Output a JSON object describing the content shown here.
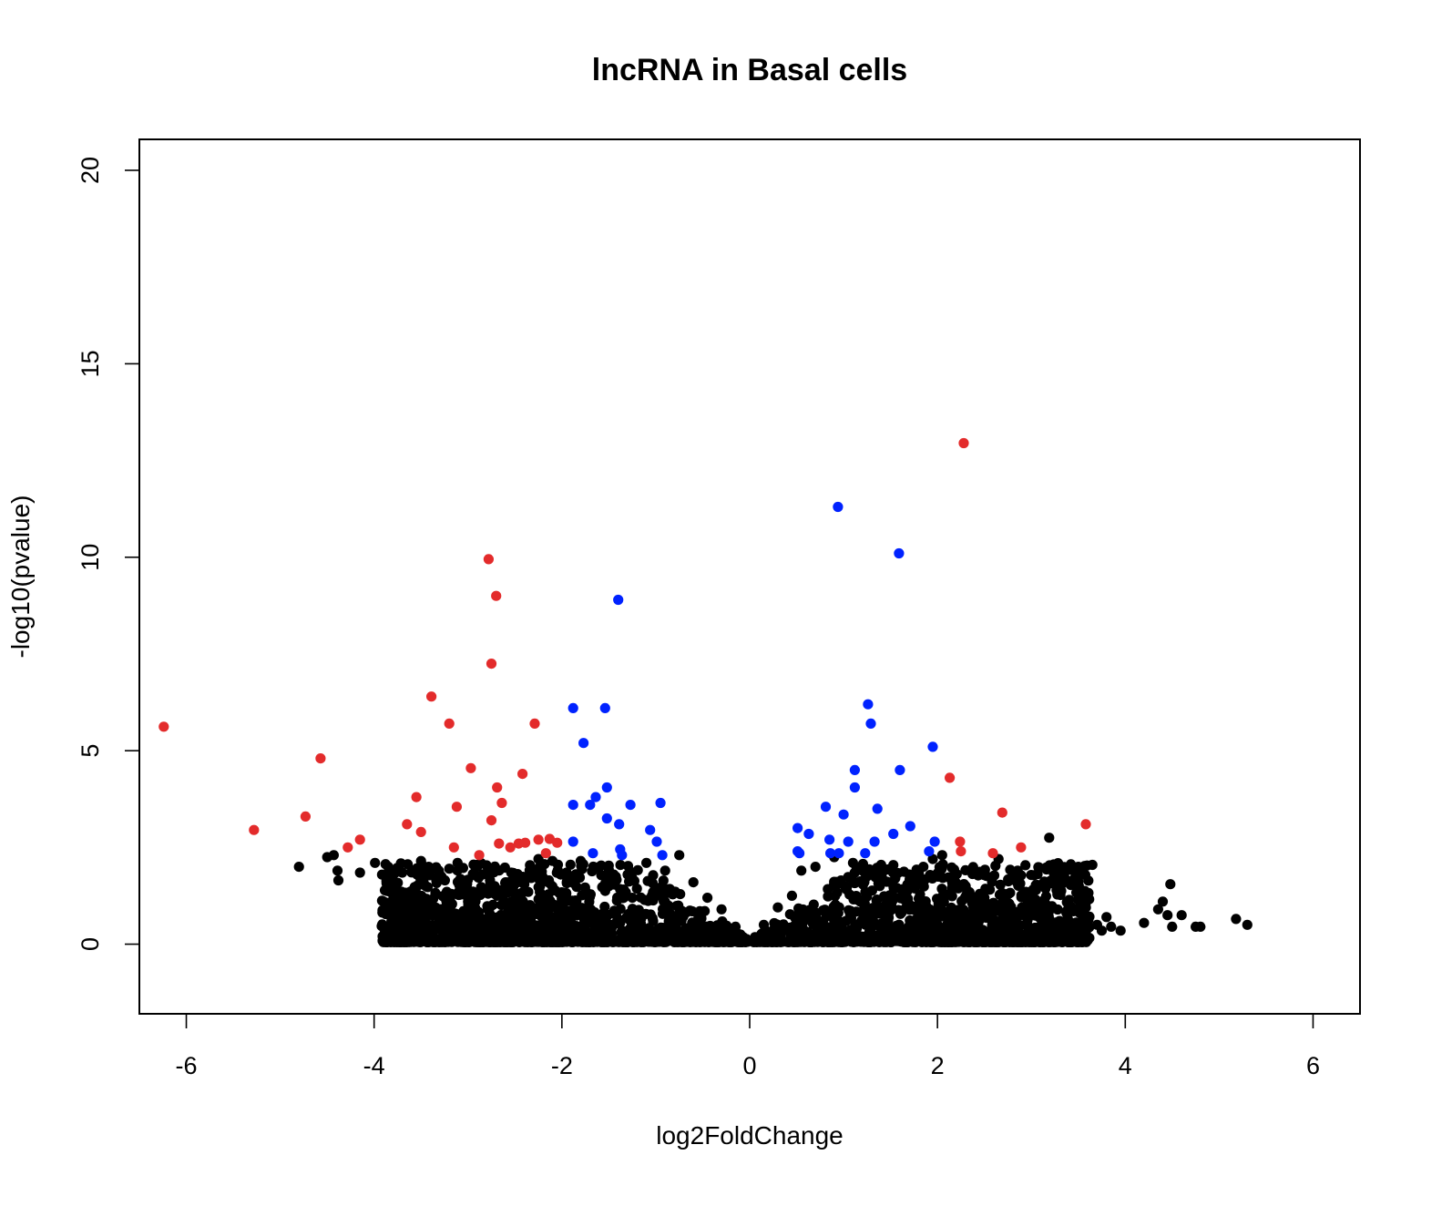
{
  "chart_data": {
    "type": "scatter",
    "title": "lncRNA in Basal cells",
    "xlabel": "log2FoldChange",
    "ylabel": "-log10(pvalue)",
    "xlim": [
      -6.5,
      6.5
    ],
    "ylim": [
      -1.8,
      20.8
    ],
    "xticks": [
      -6,
      -4,
      -2,
      0,
      2,
      4,
      6
    ],
    "yticks": [
      0,
      5,
      10,
      15,
      20
    ],
    "grid": false,
    "legend": "none",
    "colors": {
      "not_significant": "#000000",
      "significant_large_fc": "#e32b2b",
      "significant_moderate_fc": "#0022ff"
    },
    "series": [
      {
        "color_key": "significant_large_fc",
        "points": [
          [
            -6.24,
            5.62
          ],
          [
            -5.28,
            2.95
          ],
          [
            -4.73,
            3.3
          ],
          [
            -4.57,
            4.8
          ],
          [
            -4.28,
            2.5
          ],
          [
            -4.15,
            2.7
          ],
          [
            -3.65,
            3.1
          ],
          [
            -3.55,
            3.8
          ],
          [
            -3.5,
            2.9
          ],
          [
            -3.39,
            6.4
          ],
          [
            -3.2,
            5.7
          ],
          [
            -3.15,
            2.5
          ],
          [
            -3.12,
            3.55
          ],
          [
            -2.97,
            4.55
          ],
          [
            -2.88,
            2.3
          ],
          [
            -2.78,
            9.95
          ],
          [
            -2.75,
            7.25
          ],
          [
            -2.75,
            3.2
          ],
          [
            -2.7,
            9.0
          ],
          [
            -2.69,
            4.05
          ],
          [
            -2.67,
            2.6
          ],
          [
            -2.64,
            3.65
          ],
          [
            -2.55,
            2.5
          ],
          [
            -2.46,
            2.6
          ],
          [
            -2.42,
            4.4
          ],
          [
            -2.39,
            2.62
          ],
          [
            -2.29,
            5.7
          ],
          [
            -2.25,
            2.7
          ],
          [
            -2.17,
            2.35
          ],
          [
            -2.13,
            2.72
          ],
          [
            -2.05,
            2.62
          ],
          [
            2.13,
            4.3
          ],
          [
            2.24,
            2.65
          ],
          [
            2.25,
            2.4
          ],
          [
            2.28,
            12.95
          ],
          [
            2.59,
            2.35
          ],
          [
            2.69,
            3.4
          ],
          [
            2.89,
            2.5
          ],
          [
            3.58,
            3.1
          ]
        ]
      },
      {
        "color_key": "significant_moderate_fc",
        "points": [
          [
            -1.88,
            6.1
          ],
          [
            -1.88,
            3.6
          ],
          [
            -1.88,
            2.65
          ],
          [
            -1.77,
            5.2
          ],
          [
            -1.7,
            3.6
          ],
          [
            -1.67,
            2.35
          ],
          [
            -1.64,
            3.8
          ],
          [
            -1.54,
            6.1
          ],
          [
            -1.52,
            4.05
          ],
          [
            -1.52,
            3.25
          ],
          [
            -1.4,
            8.9
          ],
          [
            -1.39,
            3.1
          ],
          [
            -1.38,
            2.45
          ],
          [
            -1.36,
            2.3
          ],
          [
            -1.27,
            3.6
          ],
          [
            -1.06,
            2.95
          ],
          [
            -0.99,
            2.65
          ],
          [
            -0.95,
            3.65
          ],
          [
            -0.93,
            2.3
          ],
          [
            0.51,
            3.0
          ],
          [
            0.51,
            2.4
          ],
          [
            0.53,
            2.35
          ],
          [
            0.63,
            2.85
          ],
          [
            0.81,
            3.55
          ],
          [
            0.85,
            2.7
          ],
          [
            0.86,
            2.35
          ],
          [
            0.94,
            11.3
          ],
          [
            0.95,
            2.35
          ],
          [
            1.0,
            3.35
          ],
          [
            1.05,
            2.65
          ],
          [
            1.12,
            4.5
          ],
          [
            1.12,
            4.05
          ],
          [
            1.23,
            2.35
          ],
          [
            1.26,
            6.2
          ],
          [
            1.29,
            5.7
          ],
          [
            1.33,
            2.65
          ],
          [
            1.36,
            3.5
          ],
          [
            1.53,
            2.85
          ],
          [
            1.59,
            10.1
          ],
          [
            1.6,
            4.5
          ],
          [
            1.71,
            3.05
          ],
          [
            1.91,
            2.4
          ],
          [
            1.95,
            5.1
          ],
          [
            1.97,
            2.65
          ]
        ]
      },
      {
        "color_key": "not_significant",
        "points": [
          [
            -4.8,
            2.0
          ],
          [
            -4.5,
            2.25
          ],
          [
            -4.43,
            2.3
          ],
          [
            -4.39,
            1.9
          ],
          [
            -4.38,
            1.65
          ],
          [
            -4.15,
            1.85
          ],
          [
            -3.99,
            2.1
          ],
          [
            -3.88,
            1.05
          ],
          [
            -3.87,
            0.9
          ],
          [
            -3.85,
            2.0
          ],
          [
            -3.72,
            0.62
          ],
          [
            -3.7,
            1.85
          ],
          [
            -3.6,
            1.9
          ],
          [
            -3.55,
            0.95
          ],
          [
            -3.5,
            2.15
          ],
          [
            -3.45,
            1.5
          ],
          [
            -3.3,
            0.75
          ],
          [
            -3.2,
            1.95
          ],
          [
            -3.1,
            1.35
          ],
          [
            -3.0,
            1.1
          ],
          [
            -2.9,
            2.05
          ],
          [
            -2.8,
            1.85
          ],
          [
            -2.6,
            1.6
          ],
          [
            -2.4,
            1.55
          ],
          [
            -2.25,
            2.2
          ],
          [
            -2.1,
            2.15
          ],
          [
            -1.95,
            1.85
          ],
          [
            -1.8,
            2.15
          ],
          [
            -1.6,
            2.0
          ],
          [
            -1.5,
            1.75
          ],
          [
            -1.3,
            1.8
          ],
          [
            -1.1,
            2.1
          ],
          [
            -0.9,
            1.9
          ],
          [
            -0.75,
            2.3
          ],
          [
            -0.6,
            1.6
          ],
          [
            -0.45,
            1.2
          ],
          [
            -0.3,
            0.9
          ],
          [
            -0.15,
            0.45
          ],
          [
            0.15,
            0.5
          ],
          [
            0.3,
            0.95
          ],
          [
            0.45,
            1.25
          ],
          [
            0.55,
            1.9
          ],
          [
            0.7,
            2.0
          ],
          [
            0.9,
            2.25
          ],
          [
            1.1,
            2.1
          ],
          [
            1.2,
            1.9
          ],
          [
            1.4,
            2.05
          ],
          [
            1.55,
            1.7
          ],
          [
            1.7,
            1.8
          ],
          [
            1.85,
            2.0
          ],
          [
            1.95,
            2.2
          ],
          [
            2.05,
            2.3
          ],
          [
            2.3,
            1.5
          ],
          [
            2.5,
            1.2
          ],
          [
            2.65,
            2.2
          ],
          [
            2.75,
            1.3
          ],
          [
            2.9,
            0.95
          ],
          [
            3.05,
            1.4
          ],
          [
            3.15,
            1.05
          ],
          [
            3.19,
            2.75
          ],
          [
            3.3,
            0.6
          ],
          [
            3.45,
            0.85
          ],
          [
            3.5,
            2.0
          ],
          [
            3.55,
            0.65
          ],
          [
            3.65,
            2.05
          ],
          [
            3.7,
            0.5
          ],
          [
            3.75,
            0.35
          ],
          [
            3.8,
            0.7
          ],
          [
            3.85,
            0.45
          ],
          [
            3.95,
            0.35
          ],
          [
            4.2,
            0.55
          ],
          [
            4.35,
            0.9
          ],
          [
            4.4,
            1.1
          ],
          [
            4.45,
            0.75
          ],
          [
            4.48,
            1.55
          ],
          [
            4.5,
            0.45
          ],
          [
            4.6,
            0.75
          ],
          [
            4.75,
            0.45
          ],
          [
            4.8,
            0.45
          ],
          [
            5.18,
            0.65
          ],
          [
            5.3,
            0.5
          ]
        ]
      }
    ]
  }
}
